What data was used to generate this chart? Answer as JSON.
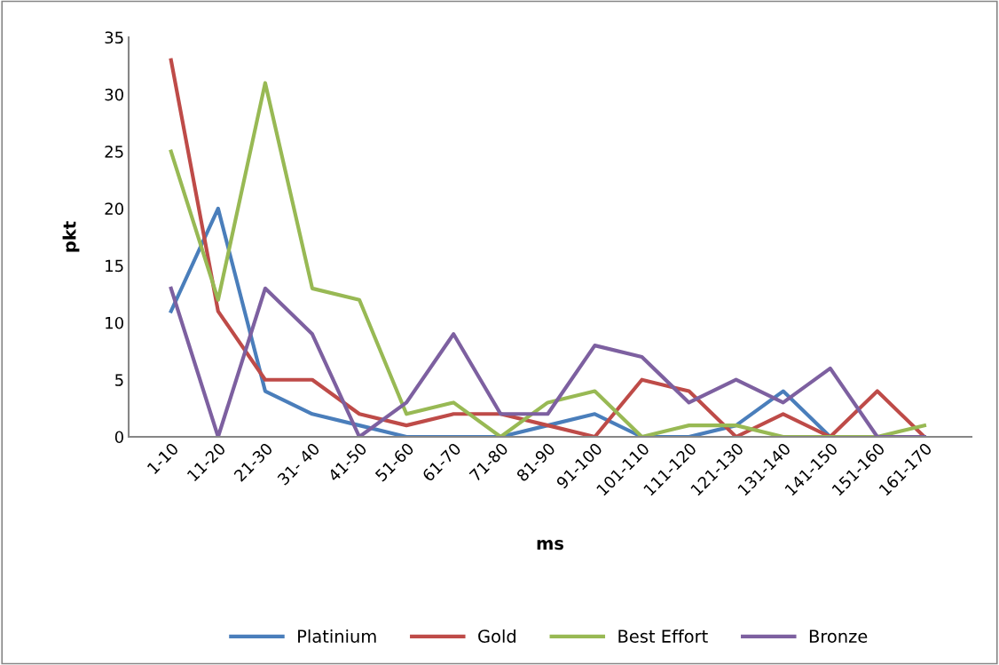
{
  "chart_data": {
    "type": "line",
    "xlabel": "ms",
    "ylabel": "pkt",
    "categories": [
      "1-10",
      "11-20",
      "21-30",
      "31- 40",
      "41-50",
      "51-60",
      "61-70",
      "71-80",
      "81-90",
      "91-100",
      "101-110",
      "111-120",
      "121-130",
      "131-140",
      "141-150",
      "151-160",
      "161-170"
    ],
    "ylim": [
      0,
      35
    ],
    "yticks": [
      0,
      5,
      10,
      15,
      20,
      25,
      30,
      35
    ],
    "grid": false,
    "legend": "bottom",
    "marker": "none",
    "line_style": "solid",
    "series": [
      {
        "name": "Platinium",
        "color": "#4a7ebb",
        "values": [
          11,
          20,
          4,
          2,
          1,
          0,
          0,
          0,
          1,
          2,
          0,
          0,
          1,
          4,
          0,
          0,
          0
        ]
      },
      {
        "name": "Gold",
        "color": "#be4b48",
        "values": [
          33,
          11,
          5,
          5,
          2,
          1,
          2,
          2,
          1,
          0,
          5,
          4,
          0,
          2,
          0,
          4,
          0
        ]
      },
      {
        "name": "Best Effort",
        "color": "#98b954",
        "values": [
          25,
          12,
          31,
          13,
          12,
          2,
          3,
          0,
          3,
          4,
          0,
          1,
          1,
          0,
          0,
          0,
          1
        ]
      },
      {
        "name": "Bronze",
        "color": "#7d60a0",
        "values": [
          13,
          0,
          13,
          9,
          0,
          3,
          9,
          2,
          2,
          8,
          7,
          3,
          5,
          3,
          6,
          0,
          0
        ]
      }
    ]
  }
}
